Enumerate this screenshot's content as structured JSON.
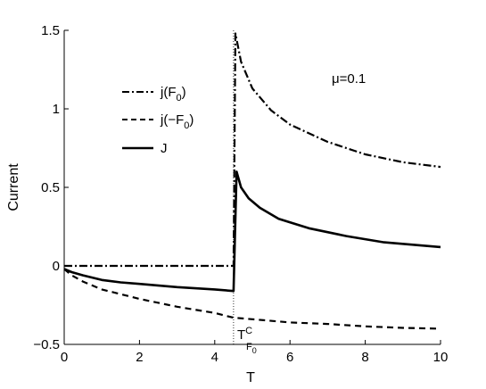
{
  "chart_data": {
    "type": "line",
    "xlabel": "T",
    "ylabel": "Current",
    "xlim": [
      0,
      10
    ],
    "ylim": [
      -0.5,
      1.5
    ],
    "xticks": [
      "0",
      "2",
      "4",
      "6",
      "8",
      "10"
    ],
    "yticks": [
      "−0.5",
      "0",
      "0.5",
      "1",
      "1.5"
    ],
    "grid": false,
    "legend_position": "upper-left",
    "annotation_mu": "μ=0.1",
    "critical_T": 4.5,
    "critical_label": {
      "main": "T",
      "sup": "C",
      "sub": "F",
      "subsub": "0"
    },
    "series": [
      {
        "name": "j(F0)",
        "legend_parts": {
          "a": "j(F",
          "sub": "0",
          "b": ")"
        },
        "style": "dashdot",
        "points": [
          [
            0,
            0
          ],
          [
            1,
            0
          ],
          [
            2,
            0
          ],
          [
            3,
            0
          ],
          [
            4,
            0
          ],
          [
            4.5,
            0
          ],
          [
            4.55,
            1.48
          ],
          [
            4.7,
            1.3
          ],
          [
            5,
            1.13
          ],
          [
            5.5,
            0.99
          ],
          [
            6,
            0.9
          ],
          [
            7,
            0.79
          ],
          [
            8,
            0.71
          ],
          [
            9,
            0.66
          ],
          [
            10,
            0.63
          ]
        ]
      },
      {
        "name": "j(−F0)",
        "legend_parts": {
          "a": "j(−F",
          "sub": "0",
          "b": ")"
        },
        "style": "dashed",
        "points": [
          [
            0,
            -0.02
          ],
          [
            0.2,
            -0.06
          ],
          [
            0.5,
            -0.1
          ],
          [
            1,
            -0.15
          ],
          [
            1.5,
            -0.18
          ],
          [
            2,
            -0.21
          ],
          [
            3,
            -0.26
          ],
          [
            4,
            -0.3
          ],
          [
            4.5,
            -0.33
          ],
          [
            5,
            -0.34
          ],
          [
            6,
            -0.36
          ],
          [
            7,
            -0.37
          ],
          [
            8,
            -0.385
          ],
          [
            9,
            -0.395
          ],
          [
            10,
            -0.4
          ]
        ]
      },
      {
        "name": "J",
        "legend_parts": {
          "a": "J",
          "sub": "",
          "b": ""
        },
        "style": "solid",
        "points": [
          [
            0,
            -0.02
          ],
          [
            0.2,
            -0.04
          ],
          [
            0.5,
            -0.06
          ],
          [
            1,
            -0.09
          ],
          [
            1.5,
            -0.105
          ],
          [
            2,
            -0.115
          ],
          [
            3,
            -0.135
          ],
          [
            4,
            -0.15
          ],
          [
            4.5,
            -0.16
          ],
          [
            4.58,
            0.6
          ],
          [
            4.7,
            0.5
          ],
          [
            4.9,
            0.43
          ],
          [
            5.2,
            0.37
          ],
          [
            5.7,
            0.3
          ],
          [
            6.5,
            0.24
          ],
          [
            7.5,
            0.19
          ],
          [
            8.5,
            0.15
          ],
          [
            10,
            0.12
          ]
        ]
      }
    ]
  }
}
